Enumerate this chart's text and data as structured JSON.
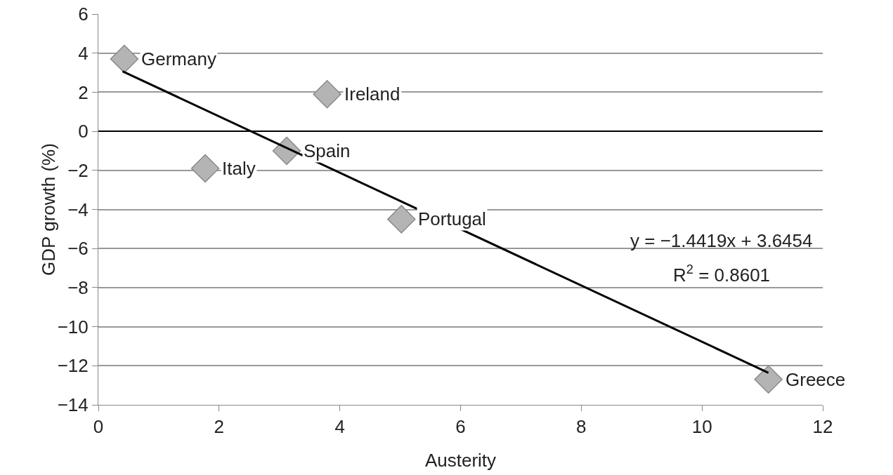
{
  "chart_data": {
    "type": "scatter",
    "xlabel": "Austerity",
    "ylabel": "GDP growth (%)",
    "xlim": [
      0,
      12
    ],
    "xticks": [
      0,
      2,
      4,
      6,
      8,
      10,
      12
    ],
    "ylim": [
      -14,
      6
    ],
    "yticks": [
      -14,
      -12,
      -10,
      -8,
      -6,
      -4,
      -2,
      0,
      2,
      4,
      6
    ],
    "grid": "y",
    "legend": false,
    "marker": "diamond",
    "series": [
      {
        "color": "#b4b4b4",
        "x": [
          0.43,
          3.79,
          3.12,
          1.77,
          5.02,
          11.1
        ],
        "values": [
          3.7,
          1.9,
          -1.0,
          -1.9,
          -4.5,
          -12.7
        ]
      },
      {
        "type": "line",
        "color": "#000000",
        "marker": "none",
        "x": [
          0.4,
          11.1
        ],
        "values": [
          3.07,
          -12.36
        ]
      }
    ],
    "annotations": [
      {
        "text": "Germany",
        "x": 0.43,
        "y": 3.7
      },
      {
        "text": "Ireland",
        "x": 3.79,
        "y": 1.9
      },
      {
        "text": "Spain",
        "x": 3.12,
        "y": -1.0
      },
      {
        "text": "Italy",
        "x": 1.77,
        "y": -1.9
      },
      {
        "text": "Portugal",
        "x": 5.02,
        "y": -4.5
      },
      {
        "text": "Greece",
        "x": 11.1,
        "y": -12.7
      },
      "y = −1.4419x + 3.6454",
      "R$^{2}$ = 0.8601"
    ]
  }
}
